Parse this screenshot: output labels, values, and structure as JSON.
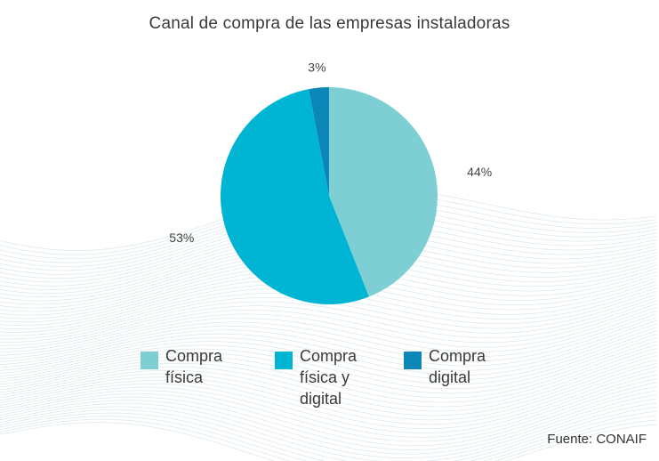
{
  "chart_data": {
    "type": "pie",
    "title": "Canal de compra de las empresas instaladoras",
    "categories": [
      "Compra física",
      "Compra física y digital",
      "Compra digital"
    ],
    "values": [
      44,
      53,
      3
    ],
    "data_labels": [
      "44%",
      "53%",
      "3%"
    ],
    "colors": [
      "#7ecfd4",
      "#00b4d4",
      "#0a87b6"
    ],
    "start_angle_deg": 0,
    "direction": "clockwise",
    "legend_placement": "bottom"
  },
  "legend": [
    {
      "lines": [
        "Compra",
        "física"
      ],
      "color": "#7ecfd4"
    },
    {
      "lines": [
        "Compra",
        "física y",
        "digital"
      ],
      "color": "#00b4d4"
    },
    {
      "lines": [
        "Compra",
        "digital"
      ],
      "color": "#0a87b6"
    }
  ],
  "source": "Fuente: CONAIF"
}
